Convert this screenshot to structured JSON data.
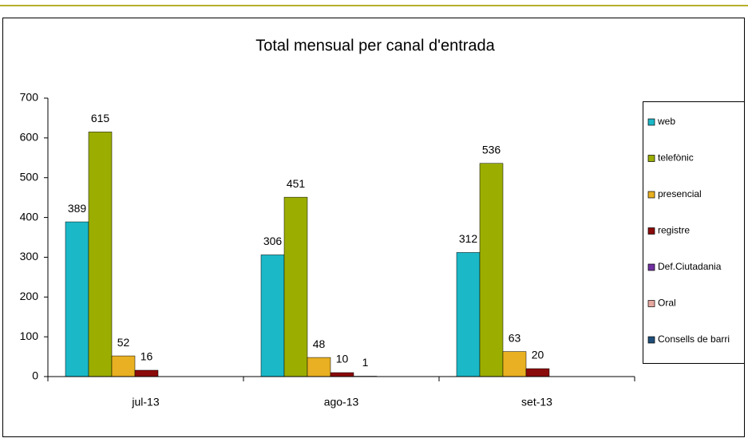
{
  "chart_data": {
    "type": "bar",
    "title": "Total mensual per canal d'entrada",
    "categories": [
      "jul-13",
      "ago-13",
      "set-13"
    ],
    "series": [
      {
        "name": "web",
        "color": "#1bb8c8",
        "values": [
          389,
          306,
          312
        ]
      },
      {
        "name": "telefònic",
        "color": "#9bae00",
        "values": [
          615,
          451,
          536
        ]
      },
      {
        "name": "presencial",
        "color": "#e8b022",
        "values": [
          52,
          48,
          63
        ]
      },
      {
        "name": "registre",
        "color": "#8b0a0a",
        "values": [
          16,
          10,
          20
        ]
      },
      {
        "name": "Def.Ciutadania",
        "color": "#7030a0",
        "values": [
          null,
          1,
          null
        ]
      },
      {
        "name": "Oral",
        "color": "#e6a8a0",
        "values": [
          null,
          null,
          null
        ]
      },
      {
        "name": "Consells de barri",
        "color": "#1f4e79",
        "values": [
          null,
          null,
          null
        ]
      }
    ],
    "ylim": [
      0,
      700
    ],
    "yticks": [
      0,
      100,
      200,
      300,
      400,
      500,
      600,
      700
    ],
    "legend": "right"
  }
}
